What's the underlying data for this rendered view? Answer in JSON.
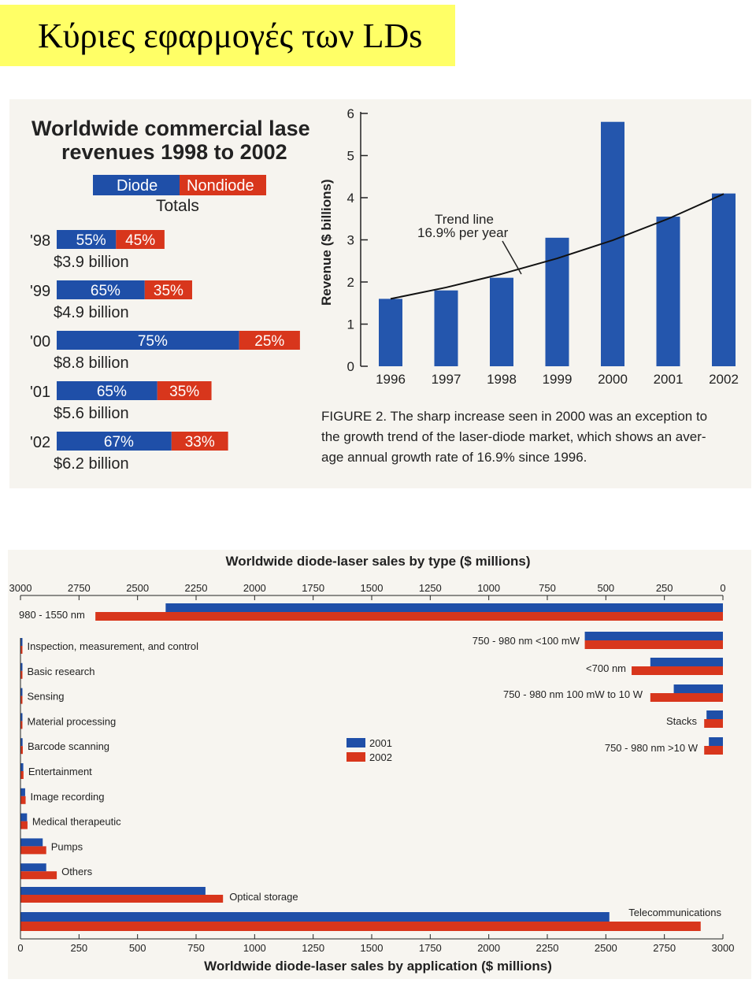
{
  "slide_title": "Κύριες εφαρμογές των LDs",
  "colors": {
    "diode": "#1f4fa8",
    "nondiode": "#d8361c",
    "s2001": "#1f4fa8",
    "s2002": "#d8361c",
    "bar": "#2456ad",
    "title_bg": "#ffff66"
  },
  "chart_data": [
    {
      "type": "bar",
      "id": "totals",
      "title_line1": "Worldwide commercial lase",
      "title_line2": "revenues 1998 to 2002",
      "legend": [
        "Diode",
        "Nondiode"
      ],
      "subtitle": "Totals",
      "rows": [
        {
          "year": "'98",
          "total": 3.9,
          "diode_pct": 55,
          "nondiode_pct": 45,
          "diode_label": "55%",
          "nondiode_label": "45%",
          "total_label": "$3.9 billion"
        },
        {
          "year": "'99",
          "total": 4.9,
          "diode_pct": 65,
          "nondiode_pct": 35,
          "diode_label": "65%",
          "nondiode_label": "35%",
          "total_label": "$4.9 billion"
        },
        {
          "year": "'00",
          "total": 8.8,
          "diode_pct": 75,
          "nondiode_pct": 25,
          "diode_label": "75%",
          "nondiode_label": "25%",
          "total_label": "$8.8 billion"
        },
        {
          "year": "'01",
          "total": 5.6,
          "diode_pct": 65,
          "nondiode_pct": 35,
          "diode_label": "65%",
          "nondiode_label": "35%",
          "total_label": "$5.6 billion"
        },
        {
          "year": "'02",
          "total": 6.2,
          "diode_pct": 67,
          "nondiode_pct": 33,
          "diode_label": "67%",
          "nondiode_label": "33%",
          "total_label": "$6.2 billion"
        }
      ]
    },
    {
      "type": "bar",
      "id": "revenue",
      "ylabel": "Revenue ($ billions)",
      "ylim": [
        0,
        6
      ],
      "yticks": [
        0,
        1,
        2,
        3,
        4,
        5,
        6
      ],
      "categories": [
        "1996",
        "1997",
        "1998",
        "1999",
        "2000",
        "2001",
        "2002"
      ],
      "values": [
        1.6,
        1.8,
        2.1,
        3.05,
        5.8,
        3.55,
        4.1
      ],
      "trend": {
        "values": [
          1.6,
          1.87,
          2.19,
          2.56,
          2.99,
          3.5,
          4.09
        ],
        "label_line1": "Trend line",
        "label_line2": "16.9% per year"
      },
      "caption_lines": [
        "FIGURE 2. The sharp increase seen in 2000 was an exception to",
        "the growth trend of the laser-diode market, which shows an aver-",
        "age annual growth rate of 16.9% since 1996."
      ]
    },
    {
      "type": "bar",
      "id": "by_type",
      "title": "Worldwide diode-laser sales by type ($ millions)",
      "axis_ticks": [
        "3000",
        "2750",
        "2500",
        "2250",
        "2000",
        "1750",
        "1500",
        "1250",
        "1000",
        "750",
        "500",
        "250",
        "0"
      ],
      "legend": [
        "2001",
        "2002"
      ],
      "series": [
        {
          "name": "980 - 1550 nm",
          "v2001": 2380,
          "v2002": 2680
        },
        {
          "name": "750 - 980 nm <100 mW",
          "v2001": 590,
          "v2002": 590
        },
        {
          "name": "<700 nm",
          "v2001": 310,
          "v2002": 390
        },
        {
          "name": "750 - 980 nm 100 mW to 10 W",
          "v2001": 210,
          "v2002": 310
        },
        {
          "name": "Stacks",
          "v2001": 70,
          "v2002": 80
        },
        {
          "name": "750 - 980 nm >10 W",
          "v2001": 60,
          "v2002": 80
        }
      ]
    },
    {
      "type": "bar",
      "id": "by_application",
      "title": "Worldwide diode-laser sales by application ($ millions)",
      "axis_ticks": [
        "0",
        "250",
        "500",
        "750",
        "1000",
        "1250",
        "1500",
        "1750",
        "2000",
        "2250",
        "2500",
        "2750",
        "3000"
      ],
      "series": [
        {
          "name": "Inspection, measurement, and control",
          "v2001": 5,
          "v2002": 6
        },
        {
          "name": "Basic research",
          "v2001": 4,
          "v2002": 5
        },
        {
          "name": "Sensing",
          "v2001": 4,
          "v2002": 5
        },
        {
          "name": "Material processing",
          "v2001": 7,
          "v2002": 8
        },
        {
          "name": "Barcode scanning",
          "v2001": 9,
          "v2002": 10
        },
        {
          "name": "Entertainment",
          "v2001": 12,
          "v2002": 13
        },
        {
          "name": "Image recording",
          "v2001": 20,
          "v2002": 22
        },
        {
          "name": "Medical therapeutic",
          "v2001": 28,
          "v2002": 30
        },
        {
          "name": "Pumps",
          "v2001": 95,
          "v2002": 110
        },
        {
          "name": "Others",
          "v2001": 110,
          "v2002": 155
        },
        {
          "name": "Optical storage",
          "v2001": 790,
          "v2002": 865
        },
        {
          "name": "Telecommunications",
          "v2001": 2515,
          "v2002": 2905
        }
      ]
    }
  ]
}
